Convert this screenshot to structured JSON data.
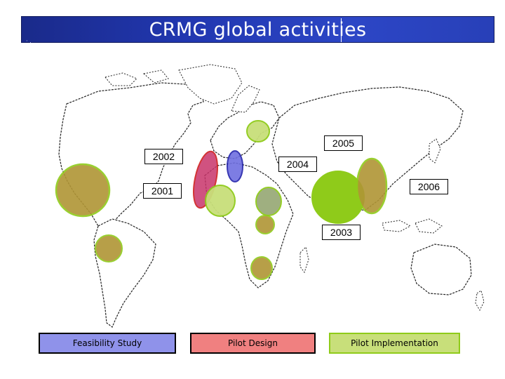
{
  "title": "CRMG global activities",
  "title_decoration": "· .",
  "colors": {
    "feasibility": "#8f92ea",
    "pilot_design": "#f08080",
    "pilot_implementation": "#c8df7a",
    "impl_border": "#8fcb1a",
    "bright_green": "#8fcb1a",
    "olive_brown": "#b09535",
    "gray_green": "#9aab7a",
    "design_red": "#c8346a",
    "design_border": "#cc1111",
    "feasibility_blue": "#6f6fe0",
    "feasibility_border": "#2222aa"
  },
  "year_labels": [
    {
      "id": "2002",
      "text": "2002"
    },
    {
      "id": "2004",
      "text": "2004"
    },
    {
      "id": "2005",
      "text": "2005"
    },
    {
      "id": "2001",
      "text": "2001"
    },
    {
      "id": "2006",
      "text": "2006"
    },
    {
      "id": "2003",
      "text": "2003"
    }
  ],
  "legend": {
    "feasibility": "Feasibility Study",
    "pilot_design": "Pilot Design",
    "pilot_implementation": "Pilot Implementation"
  }
}
